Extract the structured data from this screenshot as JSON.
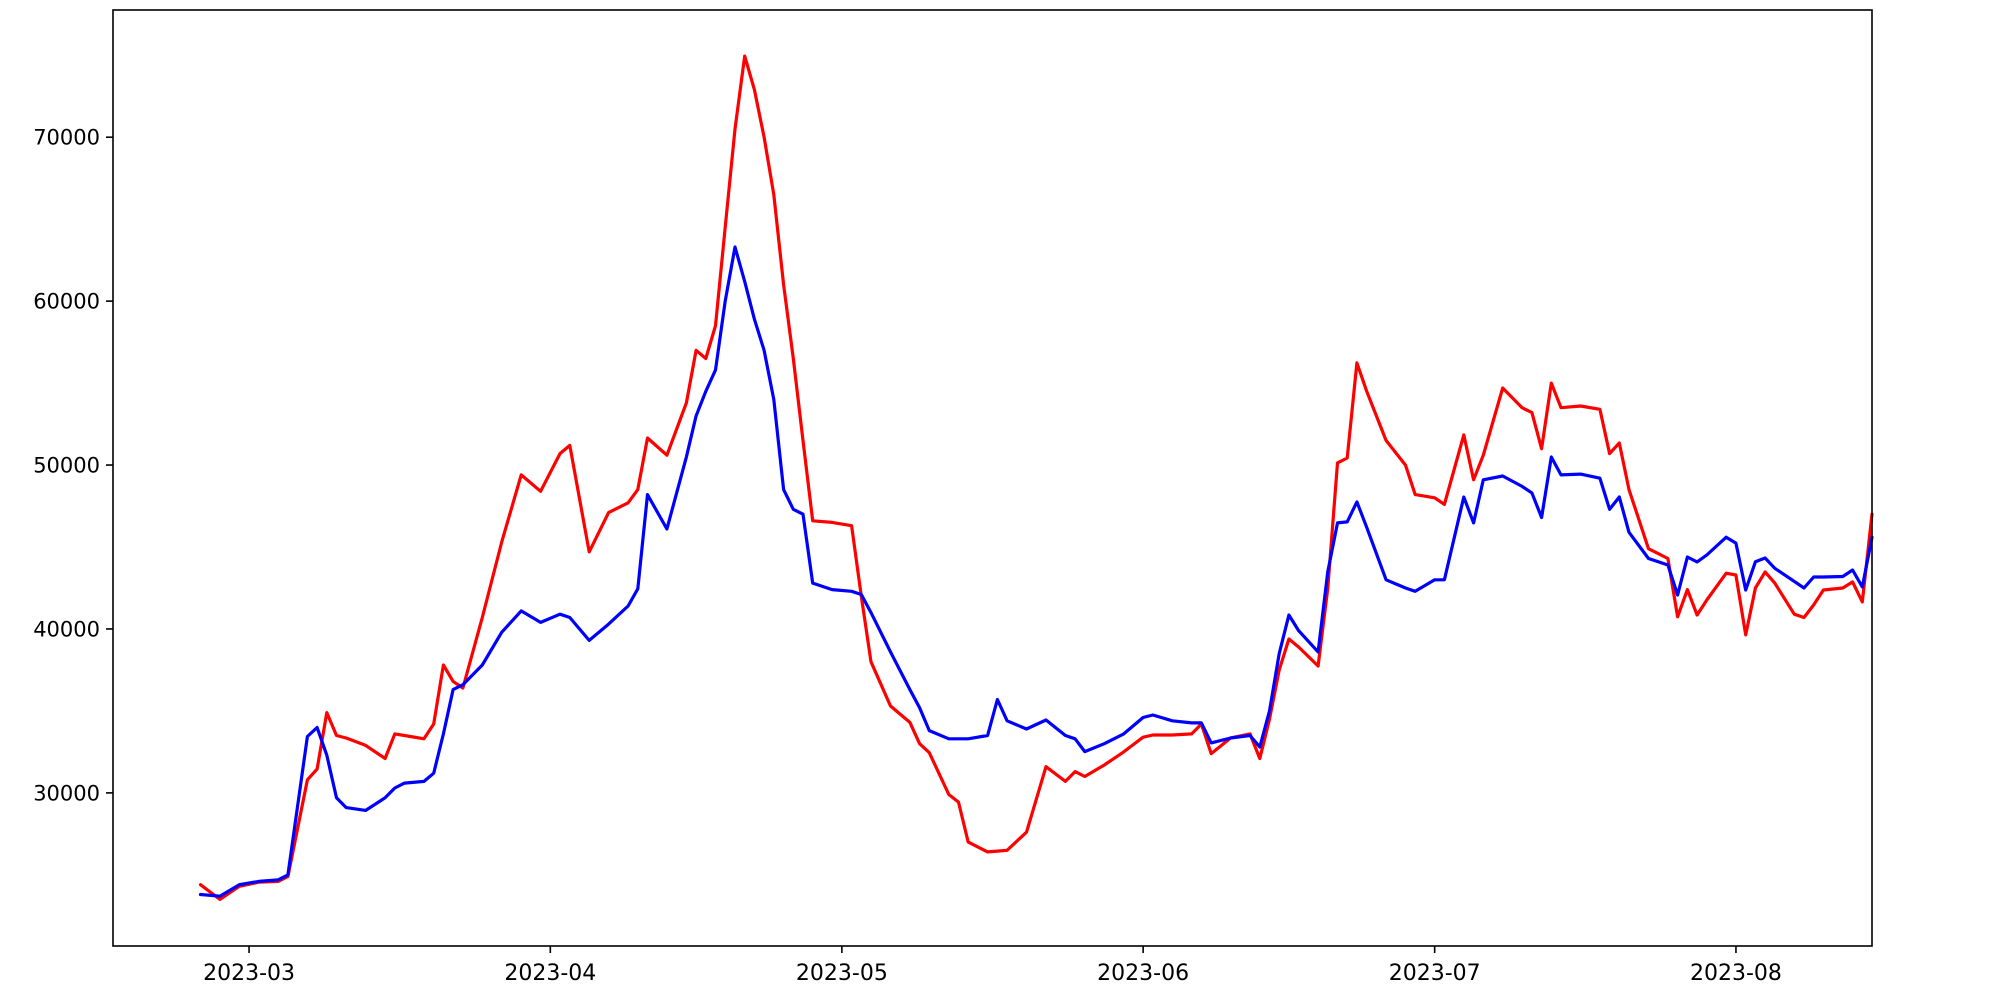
{
  "figure": {
    "background": "#ffffff",
    "frame_color": "#000000",
    "tick_color": "#000000"
  },
  "chart_data": {
    "type": "line",
    "title": "",
    "xlabel": "",
    "ylabel": "",
    "grid": false,
    "legend": "none",
    "xlim": [
      "2023-02-15",
      "2023-08-15"
    ],
    "ylim": [
      20660,
      77760
    ],
    "x_ticks": [
      {
        "date": "2023-03-01",
        "label": "2023-03"
      },
      {
        "date": "2023-04-01",
        "label": "2023-04"
      },
      {
        "date": "2023-05-01",
        "label": "2023-05"
      },
      {
        "date": "2023-06-01",
        "label": "2023-06"
      },
      {
        "date": "2023-07-01",
        "label": "2023-07"
      },
      {
        "date": "2023-08-01",
        "label": "2023-08"
      }
    ],
    "y_ticks": [
      {
        "value": 30000,
        "label": "30000"
      },
      {
        "value": 40000,
        "label": "40000"
      },
      {
        "value": 50000,
        "label": "50000"
      },
      {
        "value": 60000,
        "label": "60000"
      },
      {
        "value": 70000,
        "label": "70000"
      }
    ],
    "x": [
      "2023-02-24",
      "2023-02-26",
      "2023-02-28",
      "2023-03-02",
      "2023-03-04",
      "2023-03-05",
      "2023-03-07",
      "2023-03-08",
      "2023-03-09",
      "2023-03-10",
      "2023-03-11",
      "2023-03-13",
      "2023-03-15",
      "2023-03-16",
      "2023-03-17",
      "2023-03-19",
      "2023-03-20",
      "2023-03-21",
      "2023-03-22",
      "2023-03-23",
      "2023-03-25",
      "2023-03-27",
      "2023-03-29",
      "2023-03-31",
      "2023-04-02",
      "2023-04-03",
      "2023-04-05",
      "2023-04-07",
      "2023-04-09",
      "2023-04-10",
      "2023-04-11",
      "2023-04-13",
      "2023-04-15",
      "2023-04-16",
      "2023-04-17",
      "2023-04-18",
      "2023-04-19",
      "2023-04-20",
      "2023-04-21",
      "2023-04-22",
      "2023-04-23",
      "2023-04-24",
      "2023-04-25",
      "2023-04-26",
      "2023-04-27",
      "2023-04-28",
      "2023-04-30",
      "2023-05-02",
      "2023-05-03",
      "2023-05-04",
      "2023-05-06",
      "2023-05-08",
      "2023-05-09",
      "2023-05-10",
      "2023-05-12",
      "2023-05-13",
      "2023-05-14",
      "2023-05-16",
      "2023-05-17",
      "2023-05-18",
      "2023-05-20",
      "2023-05-22",
      "2023-05-24",
      "2023-05-25",
      "2023-05-26",
      "2023-05-28",
      "2023-05-30",
      "2023-06-01",
      "2023-06-02",
      "2023-06-04",
      "2023-06-06",
      "2023-06-07",
      "2023-06-08",
      "2023-06-10",
      "2023-06-12",
      "2023-06-13",
      "2023-06-14",
      "2023-06-15",
      "2023-06-16",
      "2023-06-17",
      "2023-06-19",
      "2023-06-20",
      "2023-06-21",
      "2023-06-22",
      "2023-06-23",
      "2023-06-24",
      "2023-06-26",
      "2023-06-28",
      "2023-06-29",
      "2023-07-01",
      "2023-07-02",
      "2023-07-04",
      "2023-07-05",
      "2023-07-06",
      "2023-07-08",
      "2023-07-10",
      "2023-07-11",
      "2023-07-12",
      "2023-07-13",
      "2023-07-14",
      "2023-07-16",
      "2023-07-18",
      "2023-07-19",
      "2023-07-20",
      "2023-07-21",
      "2023-07-23",
      "2023-07-25",
      "2023-07-26",
      "2023-07-27",
      "2023-07-28",
      "2023-07-29",
      "2023-07-31",
      "2023-08-01",
      "2023-08-02",
      "2023-08-03",
      "2023-08-04",
      "2023-08-05",
      "2023-08-07",
      "2023-08-08",
      "2023-08-09",
      "2023-08-10",
      "2023-08-12",
      "2023-08-13",
      "2023-08-14",
      "2023-08-15"
    ],
    "series": [
      {
        "name": "red-series",
        "color": "#ff0000",
        "values": [
          24400,
          23500,
          24300,
          24550,
          24600,
          24900,
          30800,
          31450,
          34900,
          33500,
          33350,
          32900,
          32100,
          33600,
          33500,
          33300,
          34200,
          37800,
          36800,
          36400,
          40700,
          45300,
          49400,
          48400,
          50700,
          51200,
          44700,
          47100,
          47700,
          48500,
          51650,
          50600,
          53800,
          57000,
          56500,
          58500,
          64500,
          70500,
          74950,
          72900,
          70000,
          66500,
          61000,
          56500,
          51500,
          46600,
          46500,
          46300,
          42000,
          38000,
          35300,
          34300,
          33000,
          32450,
          29900,
          29440,
          27000,
          26400,
          26450,
          26500,
          27600,
          31600,
          30700,
          31300,
          31000,
          31700,
          32500,
          33400,
          33530,
          33530,
          33600,
          34200,
          32400,
          33350,
          33600,
          32100,
          34500,
          37500,
          39390,
          38900,
          37740,
          42500,
          50130,
          50430,
          56230,
          54500,
          51500,
          50000,
          48200,
          48000,
          47600,
          51840,
          49100,
          50600,
          54700,
          53500,
          53200,
          51000,
          55000,
          53500,
          53600,
          53400,
          50700,
          51350,
          48500,
          44900,
          44300,
          40740,
          42400,
          40850,
          41770,
          43400,
          43290,
          39640,
          42500,
          43480,
          42800,
          40900,
          40700,
          41470,
          42380,
          42500,
          42870,
          41650,
          47000
        ]
      },
      {
        "name": "blue-series",
        "color": "#0000ff",
        "values": [
          23800,
          23700,
          24400,
          24600,
          24700,
          25000,
          33440,
          33990,
          32300,
          29700,
          29100,
          28930,
          29700,
          30300,
          30600,
          30700,
          31200,
          33600,
          36300,
          36600,
          37800,
          39800,
          41100,
          40400,
          40900,
          40700,
          39300,
          40300,
          41400,
          42450,
          48200,
          46100,
          50500,
          53000,
          54500,
          55800,
          60000,
          63300,
          61200,
          58900,
          57000,
          54000,
          48500,
          47300,
          47000,
          42800,
          42400,
          42300,
          42100,
          41000,
          38600,
          36300,
          35200,
          33800,
          33300,
          33300,
          33300,
          33500,
          35700,
          34400,
          33900,
          34450,
          33500,
          33300,
          32520,
          33000,
          33600,
          34600,
          34750,
          34400,
          34270,
          34270,
          33050,
          33350,
          33500,
          32800,
          35000,
          38500,
          40850,
          39900,
          38600,
          43500,
          46470,
          46530,
          47750,
          46200,
          43000,
          42500,
          42300,
          43000,
          43000,
          48050,
          46470,
          49100,
          49330,
          48700,
          48300,
          46800,
          50490,
          49400,
          49450,
          49200,
          47300,
          48050,
          45900,
          44300,
          43900,
          42070,
          44390,
          44090,
          44510,
          45600,
          45240,
          42380,
          44100,
          44330,
          43700,
          42900,
          42500,
          43170,
          43170,
          43200,
          43600,
          42560,
          45600
        ]
      }
    ]
  }
}
